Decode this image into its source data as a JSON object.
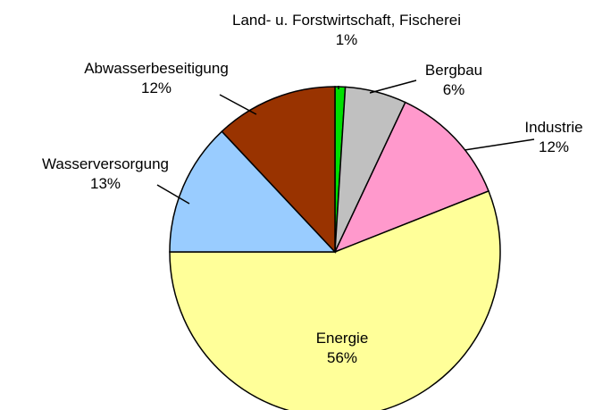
{
  "chart_data": {
    "type": "pie",
    "categories": [
      "Land- u. Forstwirtschaft, Fischerei",
      "Bergbau",
      "Industrie",
      "Energie",
      "Wasserversorgung",
      "Abwasserbeseitigung"
    ],
    "values": [
      1,
      6,
      12,
      56,
      13,
      12
    ],
    "value_labels": [
      "1%",
      "6%",
      "12%",
      "56%",
      "13%",
      "12%"
    ],
    "colors": [
      "#00e000",
      "#c0c0c0",
      "#ff99cc",
      "#ffff99",
      "#99ccff",
      "#993300"
    ]
  }
}
